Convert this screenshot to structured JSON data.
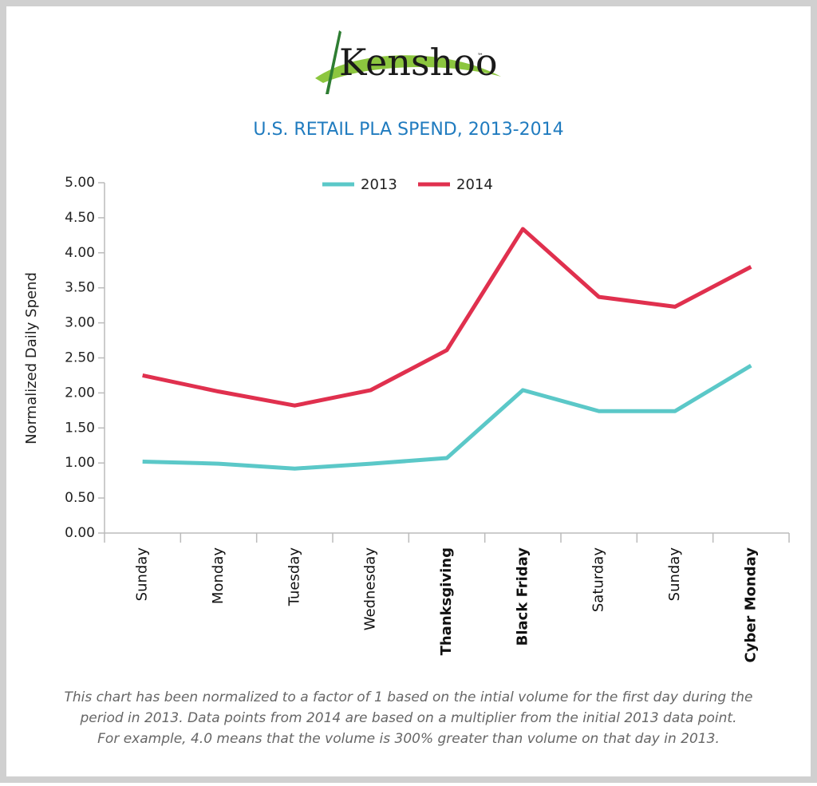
{
  "logo": {
    "text": "Kenshoo",
    "mark": "™"
  },
  "chart_data": {
    "type": "line",
    "title": "U.S. RETAIL PLA SPEND, 2013-2014",
    "y_label": "Normalized Daily Spend",
    "categories": [
      "Sunday",
      "Monday",
      "Tuesday",
      "Wednesday",
      "Thanksgiving",
      "Black Friday",
      "Saturday",
      "Sunday",
      "Cyber Monday"
    ],
    "bold_category_indices": [
      4,
      5,
      8
    ],
    "series": [
      {
        "name": "2013",
        "color": "#5bc8c8",
        "values": [
          1.02,
          0.99,
          0.92,
          0.99,
          1.07,
          2.04,
          1.74,
          1.74,
          2.39
        ]
      },
      {
        "name": "2014",
        "color": "#e0304e",
        "values": [
          2.25,
          2.02,
          1.82,
          2.04,
          2.61,
          4.34,
          3.37,
          3.23,
          3.8
        ]
      }
    ],
    "ylim": [
      0,
      5
    ],
    "yticks": [
      {
        "value": 0,
        "label": "0.00"
      },
      {
        "value": 0.5,
        "label": "0.50"
      },
      {
        "value": 1,
        "label": "1.00"
      },
      {
        "value": 1.5,
        "label": "1.50"
      },
      {
        "value": 2,
        "label": "2.00"
      },
      {
        "value": 2.5,
        "label": "2.50"
      },
      {
        "value": 3,
        "label": "3.00"
      },
      {
        "value": 3.5,
        "label": "3.50"
      },
      {
        "value": 4,
        "label": "4.00"
      },
      {
        "value": 4.5,
        "label": "4.50"
      },
      {
        "value": 5,
        "label": "5.00"
      }
    ],
    "legend": "top",
    "footnote_lines": [
      "This chart has been normalized to a factor of 1 based on the intial volume for the first day during the",
      "period in 2013. Data points from 2014 are based on a multiplier from the initial 2013 data point.",
      "For example, 4.0 means that the volume is 300% greater than volume on that day in 2013."
    ]
  }
}
